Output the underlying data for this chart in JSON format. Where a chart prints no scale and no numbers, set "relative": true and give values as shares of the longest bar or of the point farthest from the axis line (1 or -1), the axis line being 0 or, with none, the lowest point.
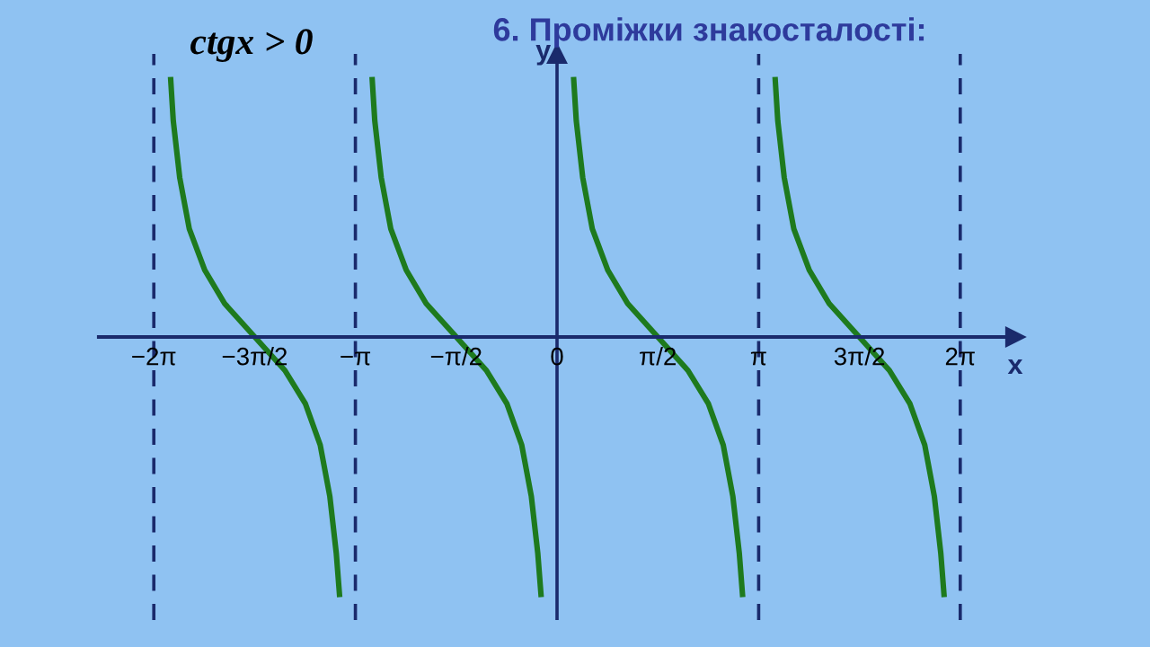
{
  "chart_data": {
    "type": "line",
    "title": "6. Проміжки знакосталості:",
    "annotations": [
      "ctgx > 0"
    ],
    "xlabel": "x",
    "ylabel": "y",
    "relative": true,
    "series": [
      {
        "color": "#1e7a1e",
        "x": [
          -6.02,
          -5.98,
          -5.88,
          -5.73,
          -5.49,
          -5.18,
          -4.71,
          -4.24,
          -3.92,
          -3.69,
          -3.54,
          -3.44,
          -3.39,
          -3.14,
          -2.88,
          -2.84,
          -2.74,
          -2.59,
          -2.35,
          -2.04,
          -1.57,
          -1.1,
          -0.78,
          -0.55,
          -0.4,
          -0.3,
          -0.25,
          0,
          0.26,
          0.3,
          0.4,
          0.55,
          0.79,
          1.1,
          1.57,
          2.04,
          2.36,
          2.59,
          2.74,
          2.84,
          2.89,
          3.14,
          3.4,
          3.44,
          3.54,
          3.69,
          3.93,
          4.24,
          4.71,
          5.18,
          5.5,
          5.73,
          5.88,
          5.98,
          6.03
        ],
        "values": [
          1,
          0.84,
          0.62,
          0.42,
          0.26,
          0.13,
          0,
          -0.13,
          -0.26,
          -0.42,
          -0.62,
          -0.84,
          -1,
          null,
          1,
          0.84,
          0.62,
          0.42,
          0.26,
          0.13,
          0,
          -0.13,
          -0.26,
          -0.42,
          -0.62,
          -0.84,
          -1,
          null,
          1,
          0.84,
          0.62,
          0.42,
          0.26,
          0.13,
          0,
          -0.13,
          -0.26,
          -0.42,
          -0.62,
          -0.84,
          -1,
          null,
          1,
          0.84,
          0.62,
          0.42,
          0.26,
          0.13,
          0,
          -0.13,
          -0.26,
          -0.42,
          -0.62,
          -0.84,
          -1
        ]
      }
    ],
    "xlim": [
      -7.14,
      7.14
    ],
    "xticks": [
      {
        "value": -6.283,
        "label": "−2π"
      },
      {
        "value": -4.712,
        "label": "−3π/2"
      },
      {
        "value": -3.142,
        "label": "−π"
      },
      {
        "value": -1.571,
        "label": "−π/2"
      },
      0,
      {
        "value": 1.571,
        "label": "π/2"
      },
      {
        "value": 3.142,
        "label": "π"
      },
      {
        "value": 4.712,
        "label": "3π/2"
      },
      {
        "value": 6.283,
        "label": "2π"
      }
    ],
    "ref_lines": [
      {
        "axis": "x",
        "value": 0,
        "color": "#1a2a6c",
        "line_style": "solid"
      },
      {
        "axis": "x",
        "value": -6.283,
        "color": "#1a2a6c",
        "line_style": "dashed"
      },
      {
        "axis": "x",
        "value": -3.142,
        "color": "#1a2a6c",
        "line_style": "dashed"
      },
      {
        "axis": "x",
        "value": 3.142,
        "color": "#1a2a6c",
        "line_style": "dashed"
      },
      {
        "axis": "x",
        "value": 6.283,
        "color": "#1a2a6c",
        "line_style": "dashed"
      }
    ],
    "grid": false,
    "marker": "none",
    "line_style": "solid"
  }
}
